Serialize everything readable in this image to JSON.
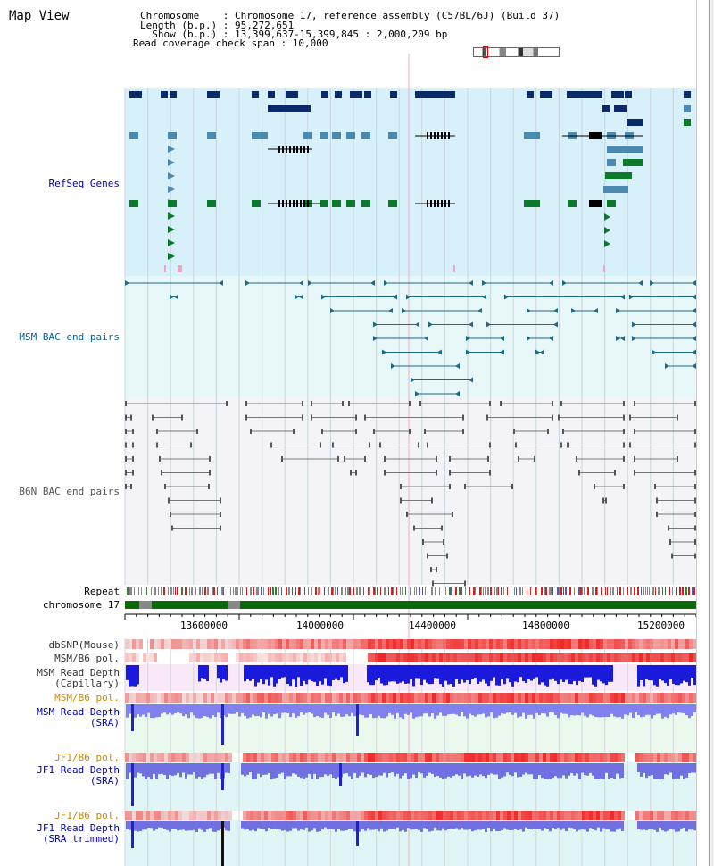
{
  "header": {
    "title": "Map View",
    "info_lines": [
      "Chromosome    : Chromosome 17, reference assembly (C57BL/6J) (Build 37)",
      "Length (b.p.) : 95,272,651",
      "  Show (b.p.) : 13,399,637-15,399,845 : 2,000,209 bp",
      "Read coverage check span : 10,000"
    ]
  },
  "tracks": {
    "refseq": {
      "label": "RefSeq Genes",
      "color": "#0000aa"
    },
    "msm_bac": {
      "label": "MSM BAC end pairs",
      "color": "#006699"
    },
    "b6n_bac": {
      "label": "B6N BAC end pairs",
      "color": "#555555"
    },
    "repeat": {
      "label": "Repeat"
    },
    "chromosome": {
      "label": "chromosome 17"
    },
    "dbsnp": {
      "label": "dbSNP(Mouse)"
    },
    "msm_b6_pol": {
      "label": "MSM/B6 pol."
    },
    "msm_read_cap": {
      "label": "MSM Read Depth",
      "sub": "(Capillary)"
    },
    "msm_b6_pol2": {
      "label": "MSM/B6 pol.",
      "color": "#cc8800"
    },
    "msm_read_sra": {
      "label": "MSM Read Depth",
      "sub": "(SRA)",
      "color": "#0000aa"
    },
    "jf1_b6_pol": {
      "label": "JF1/B6 pol.",
      "color": "#cc8800"
    },
    "jf1_read_sra": {
      "label": "JF1 Read Depth",
      "sub": "(SRA)",
      "color": "#0000aa"
    },
    "jf1_b6_pol2": {
      "label": "JF1/B6 pol.",
      "color": "#cc8800"
    },
    "jf1_read_trim": {
      "label": "JF1 Read Depth",
      "sub": "(SRA trimmed)",
      "color": "#0000aa"
    }
  },
  "axis": {
    "ticks": [
      "13600000",
      "14000000",
      "14400000",
      "14800000",
      "15200000"
    ]
  }
}
